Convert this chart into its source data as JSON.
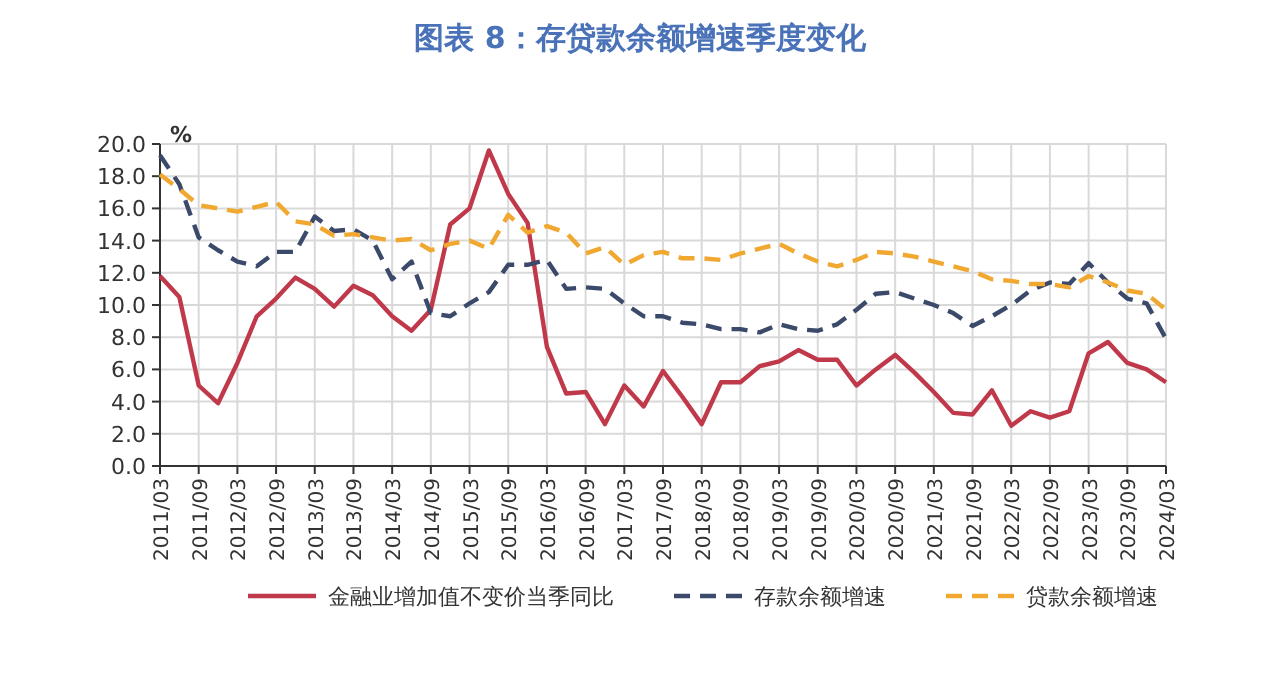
{
  "chart_data": {
    "type": "line",
    "title": "图表 8：存贷款余额增速季度变化",
    "ylabel": "%",
    "categories": [
      "2011/03",
      null,
      "2011/09",
      null,
      "2012/03",
      null,
      "2012/09",
      null,
      "2013/03",
      null,
      "2013/09",
      null,
      "2014/03",
      null,
      "2014/09",
      null,
      "2015/03",
      null,
      "2015/09",
      null,
      "2016/03",
      null,
      "2016/09",
      null,
      "2017/03",
      null,
      "2017/09",
      null,
      "2018/03",
      null,
      "2018/09",
      null,
      "2019/03",
      null,
      "2019/09",
      null,
      "2020/03",
      null,
      "2020/09",
      null,
      "2021/03",
      null,
      "2021/09",
      null,
      "2022/03",
      null,
      "2022/09",
      null,
      "2023/03",
      null,
      "2023/09",
      null,
      "2024/03"
    ],
    "series": [
      {
        "name": "金融业增加值不变价当季同比",
        "color": "#c0394b",
        "line_style": "solid",
        "values": [
          11.8,
          10.5,
          5.0,
          3.9,
          6.4,
          9.3,
          10.4,
          11.7,
          11.0,
          9.9,
          11.2,
          10.6,
          9.3,
          8.4,
          9.7,
          15.0,
          16.0,
          19.6,
          16.9,
          15.1,
          7.4,
          4.5,
          4.6,
          2.6,
          5.0,
          3.7,
          5.9,
          4.3,
          2.6,
          5.2,
          5.2,
          6.2,
          6.5,
          7.2,
          6.6,
          6.6,
          5.0,
          6.0,
          6.9,
          5.8,
          4.6,
          3.3,
          3.2,
          4.7,
          2.5,
          3.4,
          3.0,
          3.4,
          7.0,
          7.7,
          6.4,
          6.0,
          5.2
        ]
      },
      {
        "name": "存款余额增速",
        "color": "#3b4a6b",
        "line_style": "dashed",
        "values": [
          19.3,
          17.5,
          14.2,
          13.4,
          12.7,
          12.4,
          13.3,
          13.3,
          15.5,
          14.6,
          14.7,
          14.0,
          11.6,
          12.7,
          9.5,
          9.3,
          10.1,
          10.8,
          12.5,
          12.5,
          12.8,
          11.0,
          11.1,
          11.0,
          10.1,
          9.3,
          9.3,
          8.9,
          8.8,
          8.5,
          8.5,
          8.3,
          8.8,
          8.5,
          8.4,
          8.8,
          9.7,
          10.7,
          10.8,
          10.4,
          10.0,
          9.5,
          8.7,
          9.3,
          10.0,
          10.9,
          11.4,
          11.3,
          12.6,
          11.4,
          10.4,
          10.1,
          7.9
        ]
      },
      {
        "name": "贷款余额增速",
        "color": "#f0a830",
        "line_style": "dashed",
        "values": [
          18.1,
          17.2,
          16.2,
          16.0,
          15.8,
          16.1,
          16.4,
          15.2,
          15.0,
          14.3,
          14.4,
          14.2,
          14.0,
          14.1,
          13.4,
          13.8,
          14.0,
          13.5,
          15.6,
          14.5,
          14.9,
          14.5,
          13.2,
          13.6,
          12.5,
          13.1,
          13.3,
          12.9,
          12.9,
          12.8,
          13.2,
          13.5,
          13.8,
          13.2,
          12.7,
          12.4,
          12.8,
          13.3,
          13.2,
          13.0,
          12.7,
          12.4,
          12.1,
          11.6,
          11.5,
          11.3,
          11.3,
          11.1,
          11.8,
          11.4,
          10.9,
          10.7,
          9.7
        ]
      }
    ],
    "ylim": [
      0,
      20
    ],
    "yticks": [
      {
        "value": 0,
        "label": "0.0"
      },
      {
        "value": 2,
        "label": "2.0"
      },
      {
        "value": 4,
        "label": "4.0"
      },
      {
        "value": 6,
        "label": "6.0"
      },
      {
        "value": 8,
        "label": "8.0"
      },
      {
        "value": 10,
        "label": "10.0"
      },
      {
        "value": 12,
        "label": "12.0"
      },
      {
        "value": 14,
        "label": "14.0"
      },
      {
        "value": 16,
        "label": "16.0"
      },
      {
        "value": 18,
        "label": "18.0"
      },
      {
        "value": 20,
        "label": "20.0"
      }
    ],
    "grid": true,
    "legend": "bottom"
  }
}
